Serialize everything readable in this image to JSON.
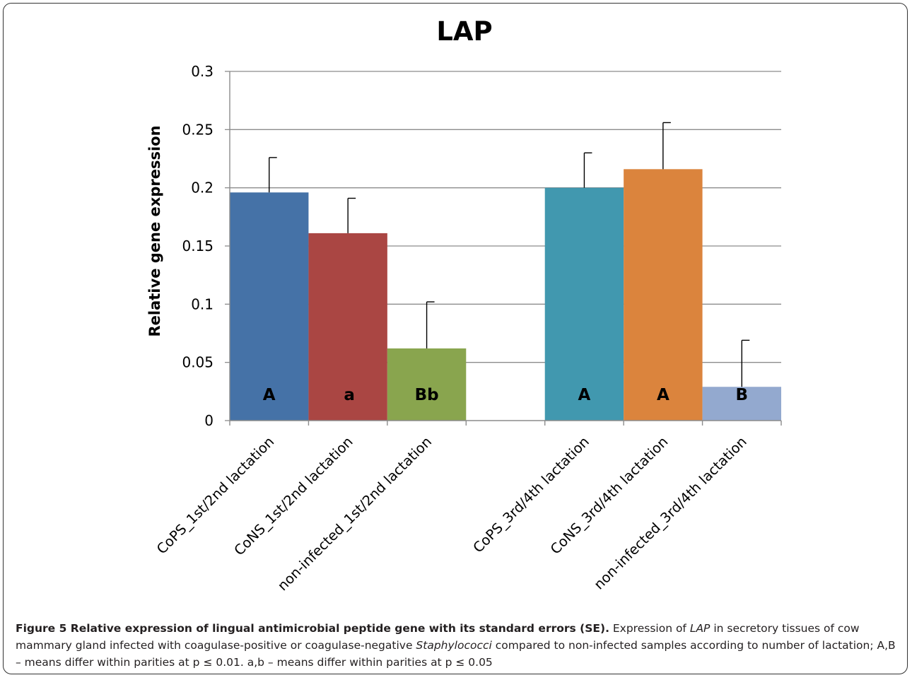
{
  "chart_data": {
    "type": "bar",
    "title": "LAP",
    "xlabel": "",
    "ylabel": "Relative gene expression",
    "ylim": [
      0,
      0.3
    ],
    "yticks": [
      "0",
      "0.05",
      "0.1",
      "0.15",
      "0.2",
      "0.25",
      "0.3"
    ],
    "grid": true,
    "legend": "none",
    "categories": [
      "CoPS_1st/2nd lactation",
      "CoNS_1st/2nd lactation",
      "non-infected_1st/2nd lactation",
      "",
      "CoPS_3rd/4th lactation",
      "CoNS_3rd/4th lactation",
      "non-infected_3rd/4th lactation"
    ],
    "values": [
      0.196,
      0.161,
      0.062,
      null,
      0.2,
      0.216,
      0.029
    ],
    "errors": [
      0.03,
      0.03,
      0.04,
      null,
      0.03,
      0.04,
      0.04
    ],
    "bar_labels": [
      "A",
      "a",
      "Bb",
      "",
      "A",
      "A",
      "B"
    ],
    "colors": [
      "#4572a7",
      "#aa4643",
      "#89a54e",
      "",
      "#4198af",
      "#db843d",
      "#93a9cf"
    ]
  },
  "caption": {
    "bold": "Figure 5 Relative expression of lingual antimicrobial peptide gene with its standard errors (SE).",
    "t1": " Expression of ",
    "i1": "LAP",
    "t2": " in secretory tissues of cow mammary gland infected with coagulase-positive or coagulase-negative ",
    "i2": "Staphylococci",
    "t3": " compared to non-infected samples according to number of lactation; A,B – means differ within parities at p ≤ 0.01. a,b – means differ within parities at p ≤ 0.05"
  }
}
